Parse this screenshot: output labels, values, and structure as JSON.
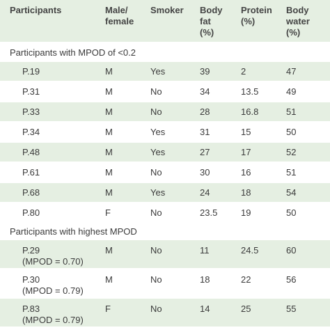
{
  "table": {
    "header": [
      [
        "Participants"
      ],
      [
        "Male/",
        "female"
      ],
      [
        "Smoker"
      ],
      [
        "Body",
        "fat",
        "(%)"
      ],
      [
        "Protein",
        "(%)"
      ],
      [
        "Body",
        "water",
        "(%)"
      ]
    ],
    "sections": [
      {
        "title": "Participants with MPOD of <0.2",
        "rows": [
          [
            [
              "P.19"
            ],
            "M",
            "Yes",
            39,
            2,
            47
          ],
          [
            [
              "P.31"
            ],
            "M",
            "No",
            34,
            13.5,
            49
          ],
          [
            [
              "P.33"
            ],
            "M",
            "No",
            28,
            16.8,
            51
          ],
          [
            [
              "P.34"
            ],
            "M",
            "Yes",
            31,
            15,
            50
          ],
          [
            [
              "P.48"
            ],
            "M",
            "Yes",
            27,
            17,
            52
          ],
          [
            [
              "P.61"
            ],
            "M",
            "No",
            30,
            16,
            51
          ],
          [
            [
              "P.68"
            ],
            "M",
            "Yes",
            24,
            18,
            54
          ],
          [
            [
              "P.80"
            ],
            "F",
            "No",
            23.5,
            19,
            50
          ]
        ]
      },
      {
        "title": "Participants with highest MPOD",
        "rows": [
          [
            [
              "P.29",
              "(MPOD = 0.70)"
            ],
            "M",
            "No",
            11,
            24.5,
            60
          ],
          [
            [
              "P.30",
              "(MPOD = 0.79)"
            ],
            "M",
            "No",
            18,
            22,
            56
          ],
          [
            [
              "P.83",
              "(MPOD = 0.79)"
            ],
            "F",
            "No",
            14,
            25,
            55
          ]
        ]
      }
    ]
  }
}
